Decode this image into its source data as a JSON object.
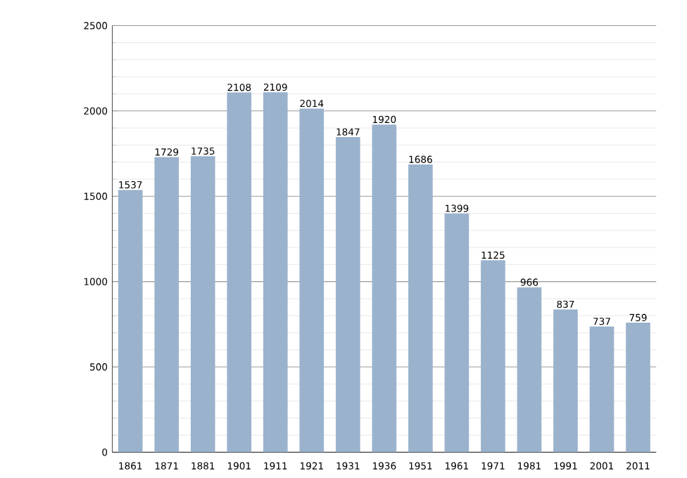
{
  "chart_data": {
    "type": "bar",
    "categories": [
      "1861",
      "1871",
      "1881",
      "1901",
      "1911",
      "1921",
      "1931",
      "1936",
      "1951",
      "1961",
      "1971",
      "1981",
      "1991",
      "2001",
      "2011"
    ],
    "values": [
      1537,
      1729,
      1735,
      2108,
      2109,
      2014,
      1847,
      1920,
      1686,
      1399,
      1125,
      966,
      837,
      737,
      759
    ],
    "color": "#9ab2cc",
    "ylim": [
      0,
      2500
    ],
    "yticks": [
      0,
      500,
      1000,
      1500,
      2000,
      2500
    ],
    "grid": "y",
    "data_labels": true
  }
}
